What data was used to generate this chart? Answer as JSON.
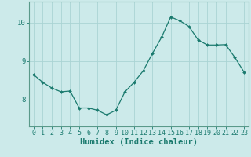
{
  "x": [
    0,
    1,
    2,
    3,
    4,
    5,
    6,
    7,
    8,
    9,
    10,
    11,
    12,
    13,
    14,
    15,
    16,
    17,
    18,
    19,
    20,
    21,
    22,
    23
  ],
  "y": [
    8.65,
    8.45,
    8.3,
    8.2,
    8.22,
    7.78,
    7.78,
    7.72,
    7.6,
    7.72,
    8.2,
    8.45,
    8.75,
    9.2,
    9.62,
    10.15,
    10.05,
    9.9,
    9.55,
    9.42,
    9.42,
    9.43,
    9.1,
    8.72
  ],
  "line_color": "#1a7a6e",
  "marker": "D",
  "marker_size": 2.0,
  "bg_color": "#cceaea",
  "grid_color": "#aad4d4",
  "axis_color": "#5a9a8a",
  "xlabel": "Humidex (Indice chaleur)",
  "xlim": [
    -0.5,
    23.5
  ],
  "ylim": [
    7.3,
    10.55
  ],
  "yticks": [
    8,
    9,
    10
  ],
  "xticks": [
    0,
    1,
    2,
    3,
    4,
    5,
    6,
    7,
    8,
    9,
    10,
    11,
    12,
    13,
    14,
    15,
    16,
    17,
    18,
    19,
    20,
    21,
    22,
    23
  ],
  "font_color": "#1a7a6e",
  "font_size": 6.0,
  "xlabel_fontsize": 7.5
}
